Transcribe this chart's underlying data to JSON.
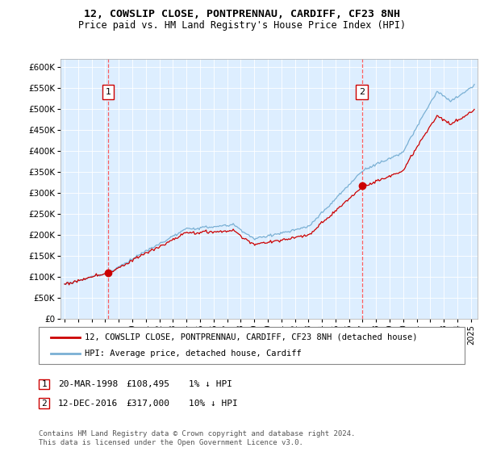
{
  "title1": "12, COWSLIP CLOSE, PONTPRENNAU, CARDIFF, CF23 8NH",
  "title2": "Price paid vs. HM Land Registry's House Price Index (HPI)",
  "ylabel_ticks": [
    "£0",
    "£50K",
    "£100K",
    "£150K",
    "£200K",
    "£250K",
    "£300K",
    "£350K",
    "£400K",
    "£450K",
    "£500K",
    "£550K",
    "£600K"
  ],
  "ytick_values": [
    0,
    50000,
    100000,
    150000,
    200000,
    250000,
    300000,
    350000,
    400000,
    450000,
    500000,
    550000,
    600000
  ],
  "ylim": [
    0,
    620000
  ],
  "xlim_start": 1994.7,
  "xlim_end": 2025.5,
  "sale1_x": 1998.22,
  "sale1_y": 108495,
  "sale2_x": 2016.95,
  "sale2_y": 317000,
  "sale1_label": "1",
  "sale2_label": "2",
  "legend_line1": "12, COWSLIP CLOSE, PONTPRENNAU, CARDIFF, CF23 8NH (detached house)",
  "legend_line2": "HPI: Average price, detached house, Cardiff",
  "note1_label": "1",
  "note1_date": "20-MAR-1998",
  "note1_price": "£108,495",
  "note1_hpi": "1% ↓ HPI",
  "note2_label": "2",
  "note2_date": "12-DEC-2016",
  "note2_price": "£317,000",
  "note2_hpi": "10% ↓ HPI",
  "footer": "Contains HM Land Registry data © Crown copyright and database right 2024.\nThis data is licensed under the Open Government Licence v3.0.",
  "line_color_red": "#cc0000",
  "line_color_blue": "#7ab0d4",
  "bg_color": "#ddeeff",
  "vline_color": "#ff4444",
  "box_color": "#cc0000",
  "fig_width": 6.0,
  "fig_height": 5.6,
  "dpi": 100
}
